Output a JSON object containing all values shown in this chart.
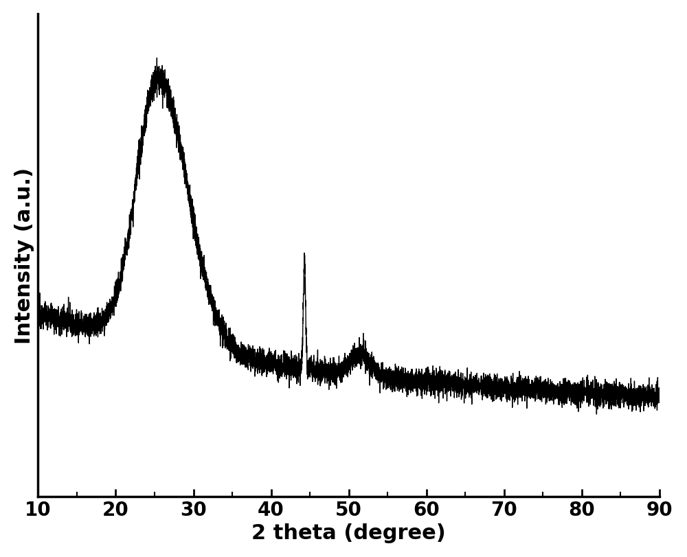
{
  "xlabel": "2 theta (degree)",
  "ylabel": "Intensity (a.u.)",
  "xlim": [
    10,
    90
  ],
  "xticks": [
    10,
    20,
    30,
    40,
    50,
    60,
    70,
    80,
    90
  ],
  "line_color": "#000000",
  "background_color": "#ffffff",
  "linewidth": 1.0,
  "xlabel_fontsize": 22,
  "ylabel_fontsize": 22,
  "tick_fontsize": 20,
  "xlabel_fontweight": "bold",
  "ylabel_fontweight": "bold",
  "tick_fontweight": "bold"
}
